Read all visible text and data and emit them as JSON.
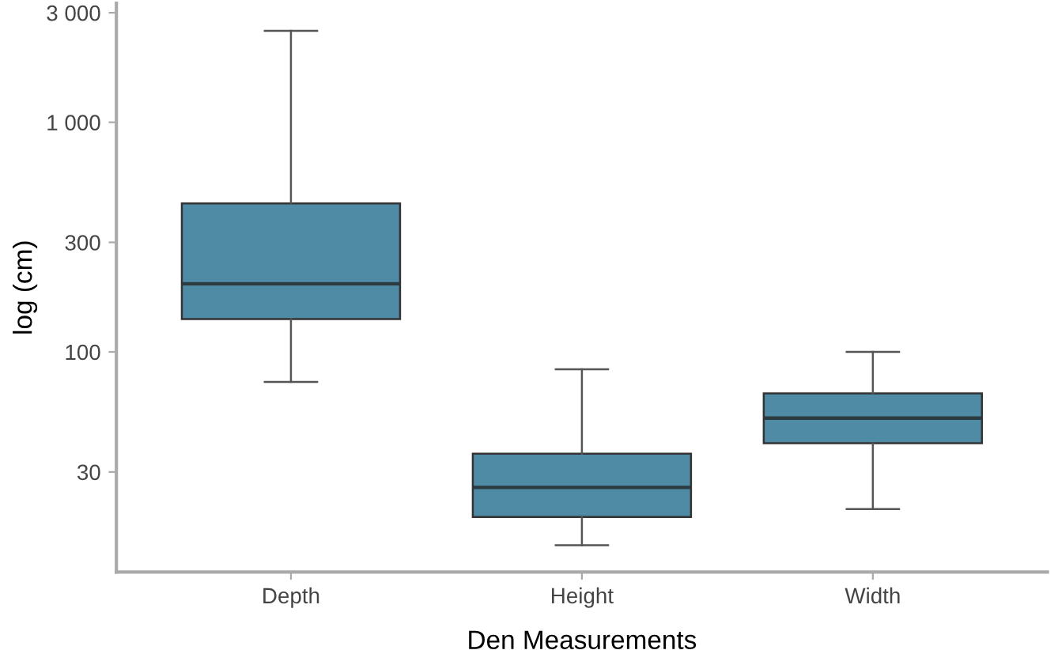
{
  "chart_data": {
    "type": "box",
    "xlabel": "Den Measurements",
    "ylabel": "log (cm)",
    "categories": [
      "Depth",
      "Height",
      "Width"
    ],
    "boxes": [
      {
        "low": 74,
        "q1": 139,
        "median": 198,
        "q3": 443,
        "high": 2500
      },
      {
        "low": 14.4,
        "q1": 19.1,
        "median": 25.7,
        "q3": 36,
        "high": 84
      },
      {
        "low": 20.7,
        "q1": 40,
        "median": 51.5,
        "q3": 66,
        "high": 100
      }
    ],
    "color": "#4f8ba5",
    "log": "y",
    "ylim": [
      11,
      3300
    ],
    "yticks": [
      {
        "value": 30,
        "label": "30"
      },
      {
        "value": 100,
        "label": "100"
      },
      {
        "value": 300,
        "label": "300"
      },
      {
        "value": 1000,
        "label": "1 000"
      },
      {
        "value": 3000,
        "label": "3 000"
      }
    ],
    "grid": false,
    "legend": false
  }
}
